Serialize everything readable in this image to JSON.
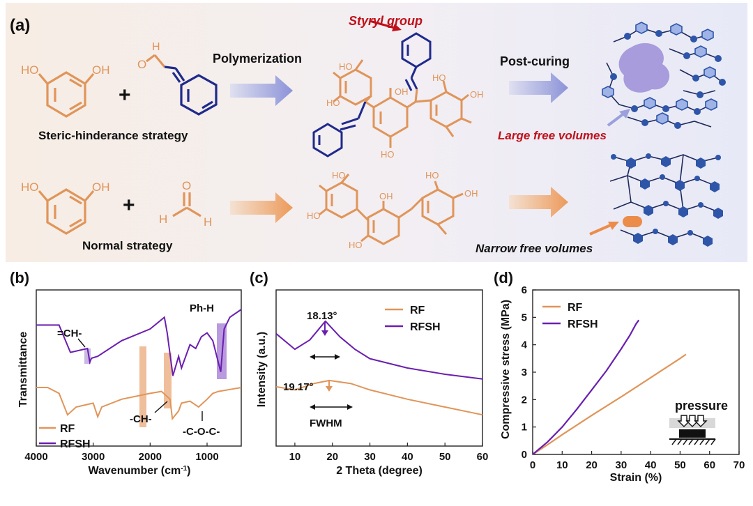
{
  "panel_a": {
    "label": "(a)",
    "styryl_group": "Styryl group",
    "polymerization": "Polymerization",
    "post_curing": "Post-curing",
    "steric_strategy": "Steric-hinderance strategy",
    "normal_strategy": "Normal strategy",
    "large_free_volumes": "Large free volumes",
    "narrow_free_volumes": "Narrow free volumes",
    "plus": "+",
    "atom_HO": "HO",
    "atom_OH": "OH",
    "atom_H": "H",
    "atom_O": "O",
    "colors": {
      "orange": "#e0955a",
      "navy": "#1f2a8c",
      "blue_node": "#2e55a8",
      "red": "#c0101a"
    }
  },
  "panel_b": {
    "label": "(b)",
    "ylabel": "Transmittance",
    "xlabel": "Wavenumber (cm",
    "xlabel_sup": "-1",
    "xlabel_end": ")",
    "xticks": [
      "4000",
      "3000",
      "2000",
      "1000"
    ],
    "ann_ch_eq": "=CH-",
    "ann_phh": "Ph-H",
    "ann_ch": "-CH-",
    "ann_coc": "-C-O-C-",
    "legend": [
      "RF",
      "RFSH"
    ]
  },
  "panel_c": {
    "label": "(c)",
    "ylabel": "Intensity (a.u.)",
    "xlabel": "2 Theta (degree)",
    "xticks": [
      "10",
      "20",
      "30",
      "40",
      "50",
      "60"
    ],
    "peak_rfsh": "18.13°",
    "peak_rf": "19.17°",
    "fwhm": "FWHM",
    "legend": [
      "RF",
      "RFSH"
    ]
  },
  "panel_d": {
    "label": "(d)",
    "ylabel": "Compressive stress (MPa)",
    "xlabel": "Strain (%)",
    "xticks": [
      "0",
      "10",
      "20",
      "30",
      "40",
      "50",
      "60",
      "70"
    ],
    "yticks": [
      "0",
      "1",
      "2",
      "3",
      "4",
      "5",
      "6"
    ],
    "legend": [
      "RF",
      "RFSH"
    ],
    "inset": "pressure"
  },
  "chart_data": [
    {
      "type": "line",
      "title": "",
      "xlabel": "Wavenumber (cm-1)",
      "ylabel": "Transmittance",
      "xlim": [
        4000,
        400
      ],
      "series": [
        {
          "name": "RF",
          "x": [
            4000,
            3800,
            3600,
            3450,
            3300,
            3000,
            2920,
            2850,
            2500,
            2000,
            1800,
            1650,
            1610,
            1500,
            1450,
            1300,
            1150,
            1000,
            900,
            800,
            600,
            400
          ],
          "y": [
            0.3,
            0.3,
            0.27,
            0.16,
            0.2,
            0.22,
            0.15,
            0.2,
            0.24,
            0.27,
            0.28,
            0.24,
            0.14,
            0.18,
            0.22,
            0.23,
            0.2,
            0.24,
            0.27,
            0.28,
            0.29,
            0.3
          ]
        },
        {
          "name": "RFSH",
          "x": [
            4000,
            3700,
            3600,
            3400,
            3100,
            3060,
            3030,
            2920,
            2500,
            2000,
            1750,
            1700,
            1600,
            1500,
            1450,
            1300,
            1200,
            1100,
            1000,
            900,
            760,
            700,
            600,
            400
          ],
          "y": [
            0.62,
            0.62,
            0.62,
            0.48,
            0.5,
            0.43,
            0.45,
            0.46,
            0.54,
            0.6,
            0.66,
            0.58,
            0.36,
            0.46,
            0.4,
            0.52,
            0.5,
            0.56,
            0.58,
            0.54,
            0.38,
            0.6,
            0.66,
            0.7
          ]
        }
      ]
    },
    {
      "type": "line",
      "title": "",
      "xlabel": "2 Theta (degree)",
      "ylabel": "Intensity (a.u.)",
      "xlim": [
        5,
        60
      ],
      "series": [
        {
          "name": "RF",
          "x": [
            5,
            10,
            15,
            19.17,
            25,
            30,
            40,
            50,
            60
          ],
          "y": [
            0.38,
            0.36,
            0.4,
            0.42,
            0.4,
            0.36,
            0.3,
            0.25,
            0.2
          ]
        },
        {
          "name": "RFSH",
          "x": [
            5,
            10,
            14,
            18.13,
            22,
            26,
            30,
            40,
            50,
            60
          ],
          "y": [
            0.72,
            0.62,
            0.68,
            0.8,
            0.7,
            0.62,
            0.56,
            0.5,
            0.46,
            0.43
          ]
        }
      ]
    },
    {
      "type": "line",
      "title": "",
      "xlabel": "Strain (%)",
      "ylabel": "Compressive stress (MPa)",
      "xlim": [
        0,
        70
      ],
      "ylim": [
        0,
        6
      ],
      "series": [
        {
          "name": "RF",
          "x": [
            0,
            5,
            10,
            20,
            30,
            40,
            50,
            52
          ],
          "y": [
            0,
            0.35,
            0.72,
            1.42,
            2.1,
            2.8,
            3.5,
            3.65
          ]
        },
        {
          "name": "RFSH",
          "x": [
            0,
            5,
            10,
            15,
            20,
            25,
            30,
            33,
            35,
            36
          ],
          "y": [
            0,
            0.45,
            1.0,
            1.65,
            2.35,
            3.05,
            3.85,
            4.35,
            4.75,
            4.9
          ]
        }
      ]
    }
  ]
}
